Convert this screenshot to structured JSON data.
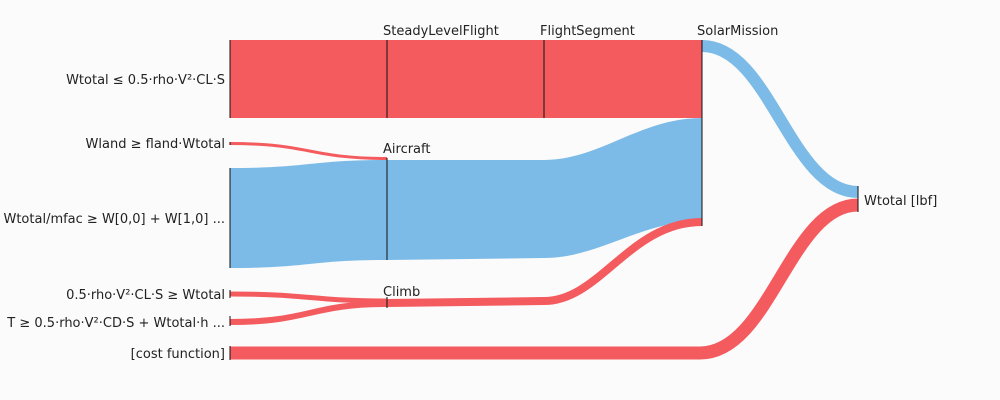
{
  "colors": {
    "red": "#f45b5f",
    "blue": "#7cbbe7",
    "node": "#111111"
  },
  "nodes": {
    "c1": "Wtotal ≤ 0.5·rho·V²·CL·S",
    "c2": "Wland ≥ fland·Wtotal",
    "c3": "Wtotal/mfac ≥ W[0,0] + W[1,0] ...",
    "c4": "0.5·rho·V²·CL·S ≥ Wtotal",
    "c5": "T ≥ 0.5·rho·V²·CD·S + Wtotal·h ...",
    "c6": "[cost function]",
    "steady": "SteadyLevelFlight",
    "segment": "FlightSegment",
    "solar": "SolarMission",
    "aircraft": "Aircraft",
    "climb": "Climb",
    "wtotal": "Wtotal [lbf]"
  },
  "links": [
    {
      "from": "c1",
      "to": "steady",
      "value": 78,
      "sign": "negative"
    },
    {
      "from": "steady",
      "to": "segment",
      "value": 78,
      "sign": "negative"
    },
    {
      "from": "segment",
      "to": "solar",
      "value": 78,
      "sign": "negative"
    },
    {
      "from": "c2",
      "to": "aircraft",
      "value": 3,
      "sign": "negative"
    },
    {
      "from": "c3",
      "to": "aircraft",
      "value": 100,
      "sign": "positive"
    },
    {
      "from": "aircraft",
      "to": "solar",
      "value": 103,
      "sign": "positive"
    },
    {
      "from": "c4",
      "to": "climb",
      "value": 5,
      "sign": "negative"
    },
    {
      "from": "c5",
      "to": "climb",
      "value": 6,
      "sign": "negative"
    },
    {
      "from": "climb",
      "to": "solar",
      "value": 8,
      "sign": "negative"
    },
    {
      "from": "solar",
      "to": "wtotal",
      "value": 12,
      "sign": "positive"
    },
    {
      "from": "c6",
      "to": "wtotal",
      "value": 13,
      "sign": "negative"
    }
  ]
}
